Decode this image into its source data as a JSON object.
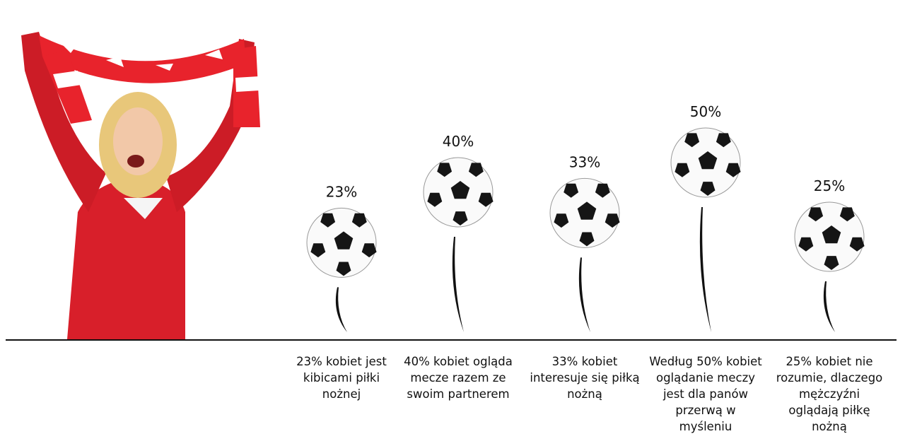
{
  "chart_data": {
    "type": "pictograph",
    "categories": [
      "23% kobiet jest kibicami piłki nożnej",
      "40% kobiet ogląda mecze razem ze swoim partnerem",
      "33% kobiet interesuje się piłką nożną",
      "Według 50% kobiet oglądanie meczy jest dla panów przerwą w myśleniu",
      "25% kobiet nie rozumie, dlaczego mężczyźni oglądają piłkę nożną"
    ],
    "values": [
      23,
      40,
      33,
      50,
      25
    ],
    "value_labels": [
      "23%",
      "40%",
      "33%",
      "50%",
      "25%"
    ]
  }
}
